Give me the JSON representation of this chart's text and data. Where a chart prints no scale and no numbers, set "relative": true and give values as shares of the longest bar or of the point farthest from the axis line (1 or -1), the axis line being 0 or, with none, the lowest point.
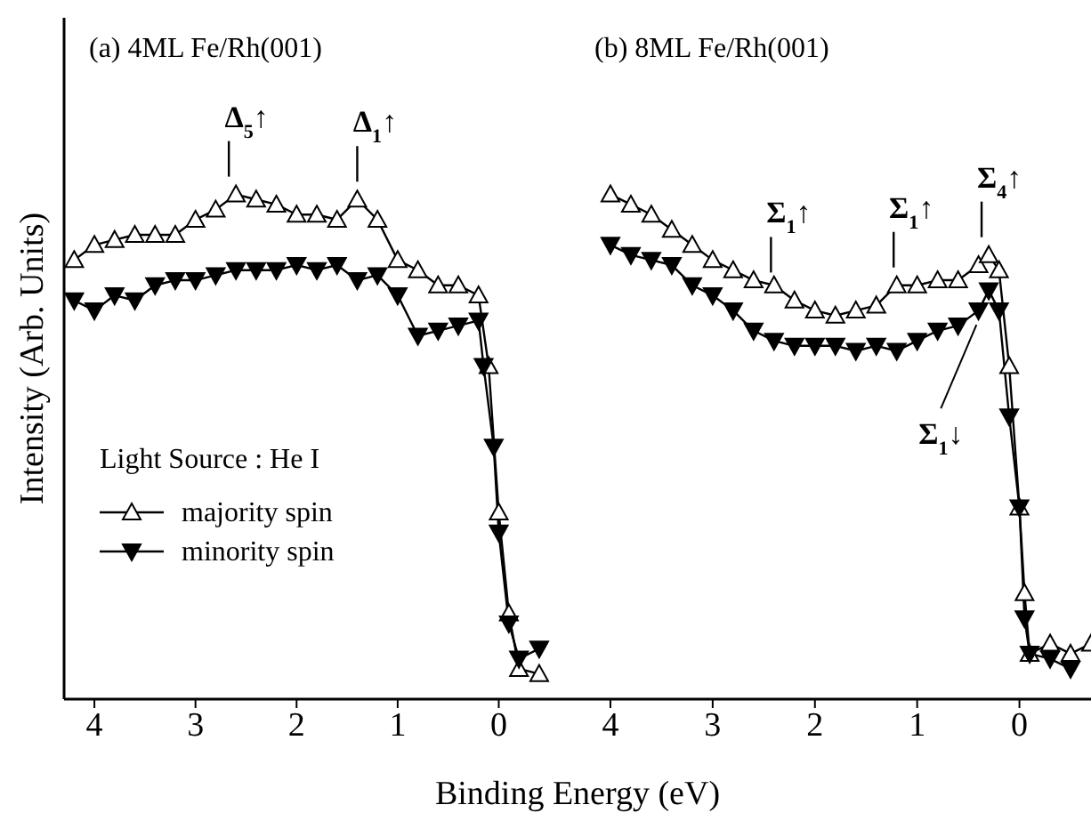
{
  "chart_data": [
    {
      "type": "line",
      "title": "(a) 4ML  Fe/Rh(001)",
      "xlabel": "Binding Energy (eV)",
      "ylabel": "Intensity (Arb. Units)",
      "legend_title": "Light Source : He I",
      "legend": "bottom left",
      "relative": true,
      "tick_labels": "x",
      "xlim": [
        4.3,
        -0.7
      ],
      "xticks": [
        4,
        3,
        2,
        1,
        0
      ],
      "annotations": [
        {
          "text": "Δ$_{5}$↑",
          "x": 2.67,
          "y": 1.0
        },
        {
          "text": "Δ$_{1}$↑",
          "x": 1.4,
          "y": 0.99
        }
      ],
      "series": [
        {
          "name": "majority spin",
          "color": "#000000",
          "marker": "triangle-open",
          "x": [
            4.2,
            4.0,
            3.8,
            3.6,
            3.4,
            3.2,
            3.0,
            2.8,
            2.6,
            2.4,
            2.2,
            2.0,
            1.8,
            1.6,
            1.4,
            1.2,
            1.0,
            0.8,
            0.6,
            0.4,
            0.2,
            0.1,
            0.0,
            -0.1,
            -0.2,
            -0.4
          ],
          "values": [
            0.87,
            0.9,
            0.91,
            0.92,
            0.92,
            0.92,
            0.95,
            0.97,
            1.0,
            0.99,
            0.98,
            0.96,
            0.96,
            0.95,
            0.99,
            0.95,
            0.87,
            0.85,
            0.82,
            0.82,
            0.8,
            0.66,
            0.37,
            0.17,
            0.06,
            0.05
          ]
        },
        {
          "name": "minority spin",
          "color": "#000000",
          "marker": "triangle-down",
          "x": [
            4.2,
            4.0,
            3.8,
            3.6,
            3.4,
            3.2,
            3.0,
            2.8,
            2.6,
            2.4,
            2.2,
            2.0,
            1.8,
            1.6,
            1.4,
            1.2,
            1.0,
            0.8,
            0.6,
            0.4,
            0.2,
            0.15,
            0.05,
            0.0,
            -0.1,
            -0.2,
            -0.4
          ],
          "values": [
            0.79,
            0.77,
            0.8,
            0.79,
            0.82,
            0.83,
            0.83,
            0.84,
            0.85,
            0.85,
            0.85,
            0.86,
            0.85,
            0.86,
            0.83,
            0.84,
            0.8,
            0.72,
            0.73,
            0.74,
            0.75,
            0.66,
            0.5,
            0.33,
            0.15,
            0.08,
            0.1
          ]
        }
      ]
    },
    {
      "type": "line",
      "title": "(b) 8ML  Fe/Rh(001)",
      "relative": true,
      "tick_labels": "x",
      "xlim": [
        4.4,
        -0.7
      ],
      "xticks": [
        4,
        3,
        2,
        1,
        0
      ],
      "annotations": [
        {
          "text": "Σ$_{1}$↑",
          "x": 2.43,
          "y": 0.81
        },
        {
          "text": "Σ$_{1}$↑",
          "x": 1.23,
          "y": 0.82
        },
        {
          "text": "Σ$_{4}$↑",
          "x": 0.37,
          "y": 0.88
        },
        {
          "text": "Σ$_{1}$↓",
          "x": 0.42,
          "y": 0.77
        }
      ],
      "series": [
        {
          "color": "#000000",
          "marker": "triangle-open",
          "x": [
            4.0,
            3.8,
            3.6,
            3.4,
            3.2,
            3.0,
            2.8,
            2.6,
            2.4,
            2.2,
            2.0,
            1.8,
            1.6,
            1.4,
            1.2,
            1.0,
            0.8,
            0.6,
            0.4,
            0.3,
            0.2,
            0.1,
            0.0,
            -0.05,
            -0.1,
            -0.3,
            -0.5,
            -0.7
          ],
          "values": [
            1.0,
            0.98,
            0.96,
            0.93,
            0.9,
            0.87,
            0.85,
            0.83,
            0.82,
            0.79,
            0.77,
            0.76,
            0.77,
            0.78,
            0.82,
            0.82,
            0.83,
            0.83,
            0.86,
            0.88,
            0.85,
            0.66,
            0.38,
            0.21,
            0.09,
            0.11,
            0.09,
            0.11
          ]
        },
        {
          "color": "#000000",
          "marker": "triangle-down",
          "x": [
            4.0,
            3.8,
            3.6,
            3.4,
            3.2,
            3.0,
            2.8,
            2.6,
            2.4,
            2.2,
            2.0,
            1.8,
            1.6,
            1.4,
            1.2,
            1.0,
            0.8,
            0.6,
            0.4,
            0.3,
            0.2,
            0.1,
            0.0,
            -0.05,
            -0.1,
            -0.3,
            -0.5
          ],
          "values": [
            0.9,
            0.88,
            0.87,
            0.86,
            0.82,
            0.8,
            0.77,
            0.73,
            0.71,
            0.7,
            0.7,
            0.7,
            0.69,
            0.7,
            0.69,
            0.71,
            0.73,
            0.74,
            0.77,
            0.81,
            0.77,
            0.56,
            0.38,
            0.16,
            0.09,
            0.08,
            0.06
          ]
        }
      ]
    }
  ]
}
